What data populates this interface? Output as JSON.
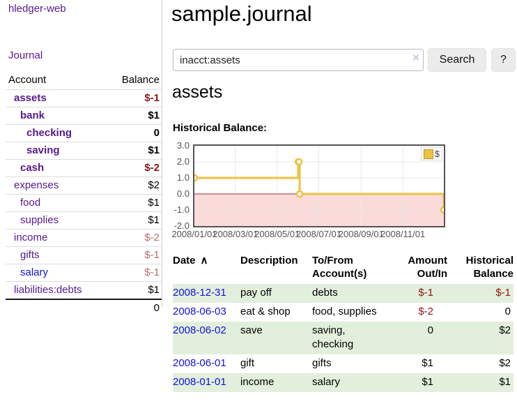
{
  "colors": {
    "link_purple": "#551a8b",
    "link_blue": "#1212d9",
    "negative_dark": "#8b1515",
    "negative_light": "#bb6b6b",
    "row_stripe_green": "#e2efdc",
    "button_bg": "#ebebeb",
    "series_gold": "#edc240"
  },
  "sidebar": {
    "brand": "hledger-web",
    "journal_link": "Journal",
    "accounts": {
      "headers": {
        "account": "Account",
        "balance": "Balance"
      },
      "rows": [
        {
          "name": "assets",
          "balance": "$-1"
        },
        {
          "name": "bank",
          "balance": "$1"
        },
        {
          "name": "checking",
          "balance": "0"
        },
        {
          "name": "saving",
          "balance": "$1"
        },
        {
          "name": "cash",
          "balance": "$-2"
        },
        {
          "name": "expenses",
          "balance": "$2"
        },
        {
          "name": "food",
          "balance": "$1"
        },
        {
          "name": "supplies",
          "balance": "$1"
        },
        {
          "name": "income",
          "balance": "$-2"
        },
        {
          "name": "gifts",
          "balance": "$-1"
        },
        {
          "name": "salary",
          "balance": "$-1"
        },
        {
          "name": "liabilities:debts",
          "balance": "$1"
        }
      ],
      "total": "0"
    }
  },
  "header": {
    "title": "sample.journal"
  },
  "search": {
    "value": "inacct:assets",
    "clear_icon": "×",
    "button_label": "Search",
    "help_label": "?"
  },
  "account_page": {
    "heading": "assets",
    "chart_label": "Historical Balance:"
  },
  "chart_data": {
    "type": "line",
    "title": "Historical Balance:",
    "style": "steps",
    "x_range": [
      "2008-01-01",
      "2008-12-31"
    ],
    "ylim": [
      -2,
      3
    ],
    "y_ticks": [
      "3.0",
      "2.0",
      "1.0",
      "0.0",
      "-1.0",
      "-2.0"
    ],
    "x_ticks": [
      "2008/01/01",
      "2008/03/01",
      "2008/05/01",
      "2008/07/01",
      "2008/09/01",
      "2008/11/01"
    ],
    "series": [
      {
        "name": "$",
        "color": "#edc240",
        "points": [
          [
            "2008-01-01",
            1
          ],
          [
            "2008-06-01",
            2
          ],
          [
            "2008-06-02",
            2
          ],
          [
            "2008-06-03",
            0
          ],
          [
            "2008-12-31",
            -1
          ]
        ]
      }
    ],
    "legend": {
      "label": "$",
      "position": "top-right"
    },
    "grid": true,
    "grid_color": "#e8e8e8",
    "border_color": "#545454",
    "negative_region_color": "#fbdada",
    "zero_line_color": "#a03030"
  },
  "register_table": {
    "columns": [
      "Date",
      "Description",
      "To/From\nAccount(s)",
      "Amount\nOut/In",
      "Historical\nBalance"
    ],
    "sort_indicator": "∧",
    "rows": [
      {
        "date": "2008-12-31",
        "description": "pay off",
        "accounts": "debts",
        "amount": "$-1",
        "balance": "$-1"
      },
      {
        "date": "2008-06-03",
        "description": "eat & shop",
        "accounts": "food, supplies",
        "amount": "$-2",
        "balance": "0"
      },
      {
        "date": "2008-06-02",
        "description": "save",
        "accounts": "saving,\nchecking",
        "amount": "0",
        "balance": "$2"
      },
      {
        "date": "2008-06-01",
        "description": "gift",
        "accounts": "gifts",
        "amount": "$1",
        "balance": "$2"
      },
      {
        "date": "2008-01-01",
        "description": "income",
        "accounts": "salary",
        "amount": "$1",
        "balance": "$1"
      }
    ]
  }
}
